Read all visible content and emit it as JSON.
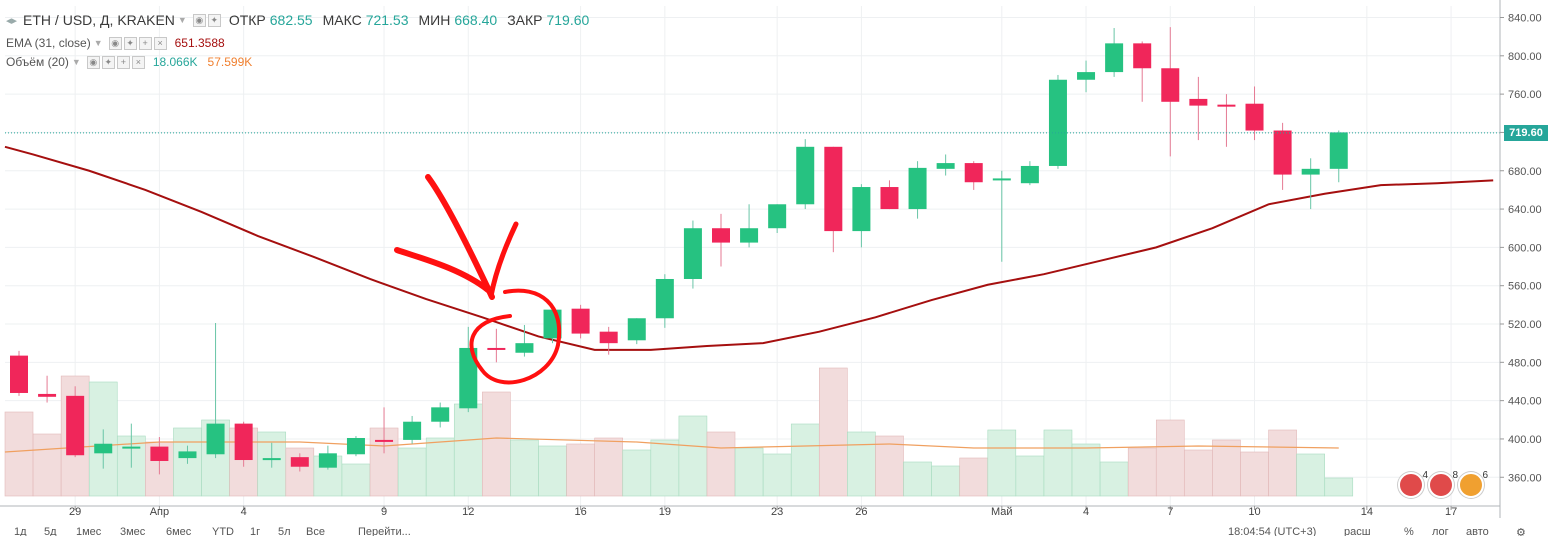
{
  "legend": {
    "symbol": "ETH / USD, Д, KRAKEN",
    "open_label": "ОТКР",
    "open": "682.55",
    "high_label": "МАКС",
    "high": "721.53",
    "low_label": "МИН",
    "low": "668.40",
    "close_label": "ЗАКР",
    "close": "719.60",
    "ema_label": "EMA (31, close)",
    "ema_value": "651.3588",
    "vol_label": "Объём (20)",
    "vol_value": "18.066K",
    "vol_ma": "57.599K"
  },
  "last_price": "719.60",
  "colors": {
    "up": "#26c281",
    "down": "#f0265a",
    "ema": "#a50f0f",
    "vol_ma": "#f0a060",
    "price_tag": "#26a69a",
    "grid": "#eef0f2"
  },
  "bottom_bar": {
    "ranges": [
      "1д",
      "5д",
      "1мес",
      "3мес",
      "6мес",
      "YTD",
      "1г",
      "5л",
      "Все"
    ],
    "goto": "Перейти...",
    "clock": "18:04:54 (UTC+3)",
    "scale_options": [
      "расш",
      "%",
      "лог",
      "авто"
    ]
  },
  "events": [
    {
      "count": "4"
    },
    {
      "count": "8"
    },
    {
      "count": "6"
    }
  ],
  "chart_data": {
    "type": "candlestick",
    "title": "ETH / USD, Д, KRAKEN",
    "y_ticks": [
      360,
      400,
      440,
      480,
      520,
      560,
      600,
      640,
      680,
      720,
      760,
      800,
      840
    ],
    "ylim": [
      330,
      852
    ],
    "x_tick_labels": [
      {
        "i": 2,
        "label": "29"
      },
      {
        "i": 5,
        "label": "Апр"
      },
      {
        "i": 8,
        "label": "4"
      },
      {
        "i": 13,
        "label": "9"
      },
      {
        "i": 16,
        "label": "12"
      },
      {
        "i": 20,
        "label": "16"
      },
      {
        "i": 23,
        "label": "19"
      },
      {
        "i": 27,
        "label": "23"
      },
      {
        "i": 30,
        "label": "26"
      },
      {
        "i": 35,
        "label": "Май"
      },
      {
        "i": 38,
        "label": "4"
      },
      {
        "i": 41,
        "label": "7"
      },
      {
        "i": 44,
        "label": "10"
      },
      {
        "i": 48,
        "label": "14"
      },
      {
        "i": 51,
        "label": "17"
      }
    ],
    "candles": [
      {
        "o": 487,
        "h": 492,
        "l": 445,
        "c": 448
      },
      {
        "o": 447,
        "h": 466,
        "l": 438,
        "c": 444
      },
      {
        "o": 445,
        "h": 455,
        "l": 381,
        "c": 383
      },
      {
        "o": 385,
        "h": 410,
        "l": 369,
        "c": 395
      },
      {
        "o": 392,
        "h": 416,
        "l": 370,
        "c": 392
      },
      {
        "o": 392,
        "h": 402,
        "l": 363,
        "c": 377
      },
      {
        "o": 380,
        "h": 393,
        "l": 374,
        "c": 387
      },
      {
        "o": 384,
        "h": 521,
        "l": 380,
        "c": 416
      },
      {
        "o": 416,
        "h": 418,
        "l": 371,
        "c": 378
      },
      {
        "o": 380,
        "h": 396,
        "l": 370,
        "c": 380
      },
      {
        "o": 381,
        "h": 385,
        "l": 366,
        "c": 371
      },
      {
        "o": 370,
        "h": 393,
        "l": 368,
        "c": 385
      },
      {
        "o": 384,
        "h": 403,
        "l": 382,
        "c": 401
      },
      {
        "o": 399,
        "h": 433,
        "l": 385,
        "c": 397
      },
      {
        "o": 399,
        "h": 424,
        "l": 395,
        "c": 418
      },
      {
        "o": 418,
        "h": 438,
        "l": 412,
        "c": 433
      },
      {
        "o": 432,
        "h": 517,
        "l": 428,
        "c": 495
      },
      {
        "o": 495,
        "h": 515,
        "l": 480,
        "c": 493
      },
      {
        "o": 490,
        "h": 519,
        "l": 486,
        "c": 500
      },
      {
        "o": 505,
        "h": 537,
        "l": 500,
        "c": 535
      },
      {
        "o": 536,
        "h": 540,
        "l": 505,
        "c": 510
      },
      {
        "o": 512,
        "h": 517,
        "l": 488,
        "c": 500
      },
      {
        "o": 503,
        "h": 526,
        "l": 499,
        "c": 526
      },
      {
        "o": 526,
        "h": 572,
        "l": 516,
        "c": 567
      },
      {
        "o": 567,
        "h": 628,
        "l": 557,
        "c": 620
      },
      {
        "o": 620,
        "h": 635,
        "l": 580,
        "c": 605
      },
      {
        "o": 605,
        "h": 645,
        "l": 600,
        "c": 620
      },
      {
        "o": 620,
        "h": 645,
        "l": 615,
        "c": 645
      },
      {
        "o": 645,
        "h": 713,
        "l": 640,
        "c": 705
      },
      {
        "o": 705,
        "h": 705,
        "l": 595,
        "c": 617
      },
      {
        "o": 617,
        "h": 666,
        "l": 600,
        "c": 663
      },
      {
        "o": 663,
        "h": 670,
        "l": 640,
        "c": 640
      },
      {
        "o": 640,
        "h": 690,
        "l": 630,
        "c": 683
      },
      {
        "o": 682,
        "h": 697,
        "l": 675,
        "c": 688
      },
      {
        "o": 688,
        "h": 690,
        "l": 660,
        "c": 668
      },
      {
        "o": 670,
        "h": 680,
        "l": 585,
        "c": 672
      },
      {
        "o": 667,
        "h": 690,
        "l": 665,
        "c": 685
      },
      {
        "o": 685,
        "h": 780,
        "l": 682,
        "c": 775
      },
      {
        "o": 775,
        "h": 795,
        "l": 762,
        "c": 783
      },
      {
        "o": 783,
        "h": 829,
        "l": 778,
        "c": 813
      },
      {
        "o": 813,
        "h": 815,
        "l": 752,
        "c": 787
      },
      {
        "o": 787,
        "h": 830,
        "l": 695,
        "c": 752
      },
      {
        "o": 755,
        "h": 778,
        "l": 712,
        "c": 748
      },
      {
        "o": 749,
        "h": 760,
        "l": 705,
        "c": 748
      },
      {
        "o": 750,
        "h": 768,
        "l": 712,
        "c": 722
      },
      {
        "o": 722,
        "h": 730,
        "l": 660,
        "c": 676
      },
      {
        "o": 676,
        "h": 693,
        "l": 640,
        "c": 682
      },
      {
        "o": 682,
        "h": 722,
        "l": 668,
        "c": 720
      }
    ],
    "ema": [
      {
        "i": -0.5,
        "v": 705
      },
      {
        "i": 0.5,
        "v": 697
      },
      {
        "i": 2.5,
        "v": 680
      },
      {
        "i": 4.5,
        "v": 660
      },
      {
        "i": 6.5,
        "v": 637
      },
      {
        "i": 8.5,
        "v": 612
      },
      {
        "i": 10.5,
        "v": 590
      },
      {
        "i": 12.5,
        "v": 567
      },
      {
        "i": 14.5,
        "v": 546
      },
      {
        "i": 16.5,
        "v": 527
      },
      {
        "i": 18.5,
        "v": 507
      },
      {
        "i": 20.5,
        "v": 493
      },
      {
        "i": 22.5,
        "v": 493
      },
      {
        "i": 24.5,
        "v": 497
      },
      {
        "i": 26.5,
        "v": 500
      },
      {
        "i": 28.5,
        "v": 512
      },
      {
        "i": 30.5,
        "v": 527
      },
      {
        "i": 32.5,
        "v": 545
      },
      {
        "i": 34.5,
        "v": 561
      },
      {
        "i": 36.5,
        "v": 572
      },
      {
        "i": 38.5,
        "v": 586
      },
      {
        "i": 40.5,
        "v": 600
      },
      {
        "i": 42.5,
        "v": 620
      },
      {
        "i": 44.5,
        "v": 645
      },
      {
        "i": 46.5,
        "v": 656
      },
      {
        "i": 48.5,
        "v": 665
      },
      {
        "i": 50.5,
        "v": 667
      },
      {
        "i": 52.5,
        "v": 670
      }
    ],
    "volume": [
      {
        "v": 42
      },
      {
        "v": 31
      },
      {
        "v": 60
      },
      {
        "v": 57
      },
      {
        "v": 30
      },
      {
        "v": 27
      },
      {
        "v": 34
      },
      {
        "v": 38
      },
      {
        "v": 34
      },
      {
        "v": 32
      },
      {
        "v": 24
      },
      {
        "v": 20
      },
      {
        "v": 16
      },
      {
        "v": 34
      },
      {
        "v": 24
      },
      {
        "v": 29
      },
      {
        "v": 46
      },
      {
        "v": 52
      },
      {
        "v": 28
      },
      {
        "v": 25
      },
      {
        "v": 26
      },
      {
        "v": 29
      },
      {
        "v": 23
      },
      {
        "v": 28
      },
      {
        "v": 40
      },
      {
        "v": 32
      },
      {
        "v": 24
      },
      {
        "v": 21
      },
      {
        "v": 36
      },
      {
        "v": 64
      },
      {
        "v": 32
      },
      {
        "v": 30
      },
      {
        "v": 17
      },
      {
        "v": 15
      },
      {
        "v": 19
      },
      {
        "v": 33
      },
      {
        "v": 20
      },
      {
        "v": 33
      },
      {
        "v": 26
      },
      {
        "v": 17
      },
      {
        "v": 24
      },
      {
        "v": 38
      },
      {
        "v": 23
      },
      {
        "v": 28
      },
      {
        "v": 22
      },
      {
        "v": 33
      },
      {
        "v": 21
      },
      {
        "v": 9
      }
    ],
    "volume_ma": [
      {
        "i": -0.5,
        "v": 22
      },
      {
        "i": 5,
        "v": 27
      },
      {
        "i": 10,
        "v": 27
      },
      {
        "i": 13,
        "v": 25
      },
      {
        "i": 17,
        "v": 29
      },
      {
        "i": 22,
        "v": 27
      },
      {
        "i": 25,
        "v": 24
      },
      {
        "i": 28,
        "v": 25
      },
      {
        "i": 31,
        "v": 26
      },
      {
        "i": 34,
        "v": 24
      },
      {
        "i": 38,
        "v": 24
      },
      {
        "i": 42,
        "v": 25
      },
      {
        "i": 47,
        "v": 24
      }
    ]
  }
}
